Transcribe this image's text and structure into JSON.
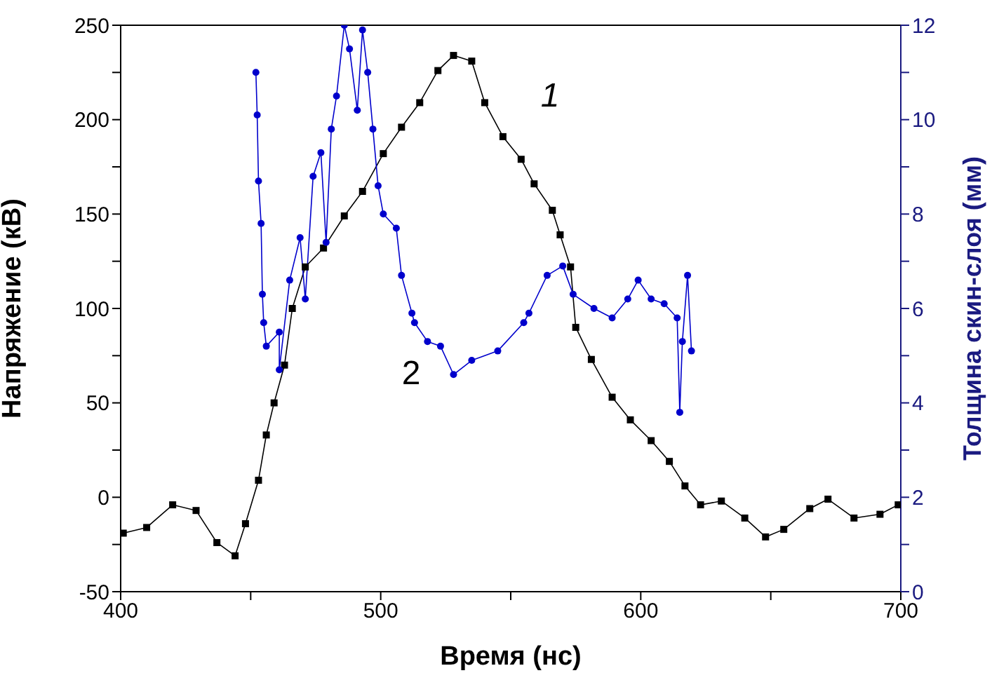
{
  "chart_data": {
    "type": "line",
    "xlabel": "Время (нс)",
    "ylabel": "Напряжение (кВ)",
    "y2label": "Толщина скин-слоя (мм)",
    "xlim": [
      400,
      700
    ],
    "xticks": [
      400,
      {
        "value": 450,
        "label": null
      },
      500,
      {
        "value": 550,
        "label": null
      },
      600,
      {
        "value": 650,
        "label": null
      },
      700
    ],
    "ylim": [
      -50,
      250
    ],
    "yticks": [
      -50,
      {
        "value": -25,
        "label": null
      },
      0,
      {
        "value": 25,
        "label": null
      },
      50,
      {
        "value": 75,
        "label": null
      },
      100,
      {
        "value": 125,
        "label": null
      },
      150,
      {
        "value": 175,
        "label": null
      },
      200,
      {
        "value": 225,
        "label": null
      },
      250
    ],
    "y2lim": [
      0,
      12
    ],
    "y2ticks": [
      0,
      {
        "value": 1,
        "label": null
      },
      2,
      {
        "value": 3,
        "label": null
      },
      4,
      {
        "value": 5,
        "label": null
      },
      6,
      {
        "value": 7,
        "label": null
      },
      8,
      {
        "value": 9,
        "label": null
      },
      10,
      {
        "value": 11,
        "label": null
      },
      12
    ],
    "series": [
      {
        "color": "#000000",
        "marker": "square",
        "x": [
          401,
          410,
          420,
          429,
          437,
          444,
          448,
          453,
          456,
          459,
          463,
          466,
          471,
          478,
          486,
          493,
          501,
          508,
          515,
          522,
          528,
          535,
          540,
          547,
          554,
          559,
          566,
          569,
          573,
          575,
          581,
          589,
          596,
          604,
          611,
          617,
          623,
          631,
          640,
          648,
          655,
          665,
          672,
          682,
          692,
          699
        ],
        "values": [
          -19,
          -16,
          -4,
          -7,
          -24,
          -31,
          -14,
          9,
          33,
          50,
          70,
          100,
          122,
          132,
          149,
          162,
          182,
          196,
          209,
          226,
          234,
          231,
          209,
          191,
          179,
          166,
          152,
          139,
          122,
          90,
          73,
          53,
          41,
          30,
          19,
          6,
          -4,
          -2,
          -11,
          -21,
          -17,
          -6,
          -1,
          -11,
          -9,
          -4
        ]
      },
      {
        "color": "#0000cc",
        "marker": "circle",
        "axis": "y2",
        "x": [
          452,
          452.5,
          453,
          454,
          454.5,
          455,
          456,
          461,
          461,
          465,
          469,
          471,
          474,
          477,
          479,
          481,
          483,
          486,
          488,
          491,
          493,
          495,
          497,
          499,
          501,
          506,
          508,
          512,
          513,
          518,
          523,
          528,
          535,
          545,
          555,
          557,
          564,
          570,
          574,
          582,
          589,
          595,
          599,
          604,
          609,
          614,
          615,
          616,
          618,
          619.5
        ],
        "values": [
          11.0,
          10.1,
          8.7,
          7.8,
          6.3,
          5.7,
          5.2,
          5.5,
          4.7,
          6.6,
          7.5,
          6.2,
          8.8,
          9.3,
          7.4,
          9.8,
          10.5,
          12.0,
          11.5,
          10.2,
          11.9,
          11.0,
          9.8,
          8.6,
          8.0,
          7.7,
          6.7,
          5.9,
          5.7,
          5.3,
          5.2,
          4.6,
          4.9,
          5.1,
          5.7,
          5.9,
          6.7,
          6.9,
          6.3,
          6.0,
          5.8,
          6.2,
          6.6,
          6.2,
          6.1,
          5.8,
          3.8,
          5.3,
          6.7,
          5.1
        ]
      }
    ],
    "annotations": [
      "1",
      "2"
    ]
  }
}
